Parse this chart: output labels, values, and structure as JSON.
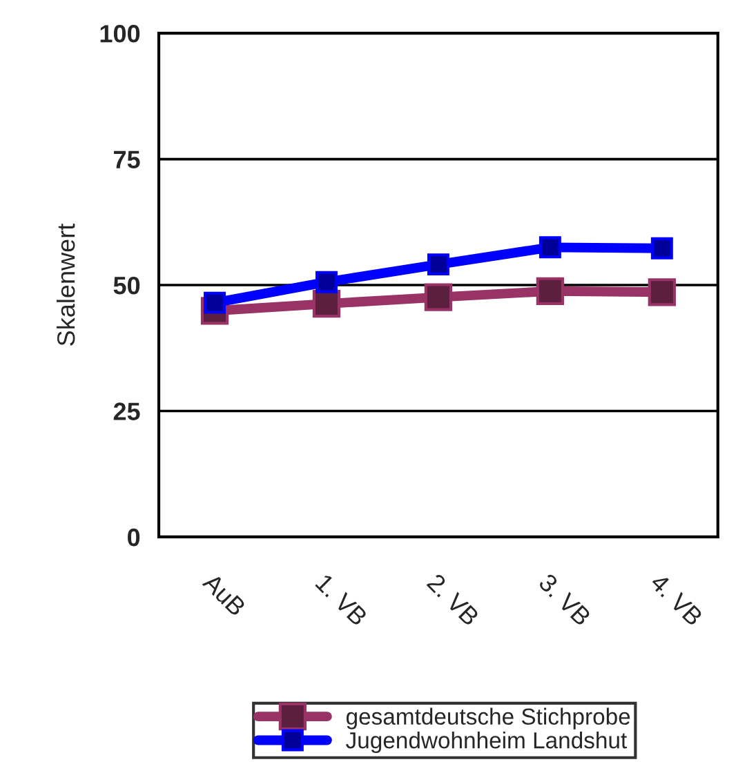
{
  "chart_data": {
    "type": "line",
    "ylabel": "Skalenwert",
    "categories": [
      "AuB",
      "1. VB",
      "2. VB",
      "3. VB",
      "4. VB"
    ],
    "series": [
      {
        "name": "gesamtdeutsche Stichprobe",
        "color": "#993366",
        "values": [
          44.9,
          46.3,
          47.6,
          48.8,
          48.6
        ]
      },
      {
        "name": "Jugendwohnheim Landshut",
        "color": "#0000ff",
        "values": [
          46.5,
          50.6,
          54.1,
          57.5,
          57.3
        ]
      }
    ],
    "ylim": [
      0,
      100
    ],
    "yticks": [
      0,
      25,
      50,
      75,
      100
    ],
    "grid": "y",
    "legend": "bottom",
    "marker": "square",
    "line_style": "solid"
  }
}
